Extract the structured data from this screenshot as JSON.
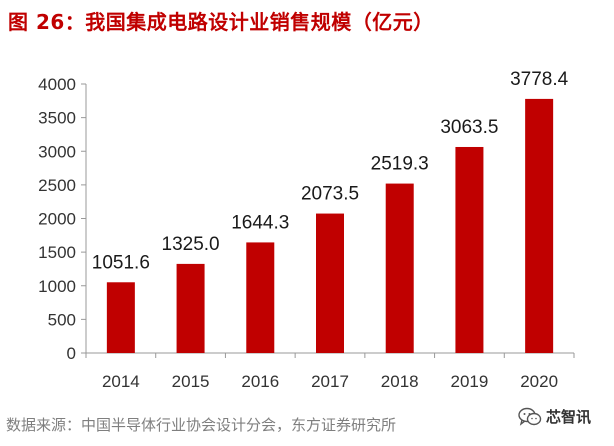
{
  "title": "图 26：我国集成电路设计业销售规模（亿元）",
  "source": "数据来源：中国半导体行业协会设计分会，东方证券研究所",
  "watermark": "芯智讯",
  "colors": {
    "bar": "#c00000",
    "title": "#c00000",
    "axis": "#999999"
  },
  "chart_data": {
    "type": "bar",
    "title": "图 26：我国集成电路设计业销售规模（亿元）",
    "xlabel": "",
    "ylabel": "",
    "categories": [
      "2014",
      "2015",
      "2016",
      "2017",
      "2018",
      "2019",
      "2020"
    ],
    "values": [
      1051.6,
      1325.0,
      1644.3,
      2073.5,
      2519.3,
      3063.5,
      3778.4
    ],
    "value_labels": [
      "1051.6",
      "1325.0",
      "1644.3",
      "2073.5",
      "2519.3",
      "3063.5",
      "3778.4"
    ],
    "ylim": [
      0,
      4000
    ],
    "yticks": [
      0,
      500,
      1000,
      1500,
      2000,
      2500,
      3000,
      3500,
      4000
    ],
    "grid": false,
    "legend": "none"
  }
}
